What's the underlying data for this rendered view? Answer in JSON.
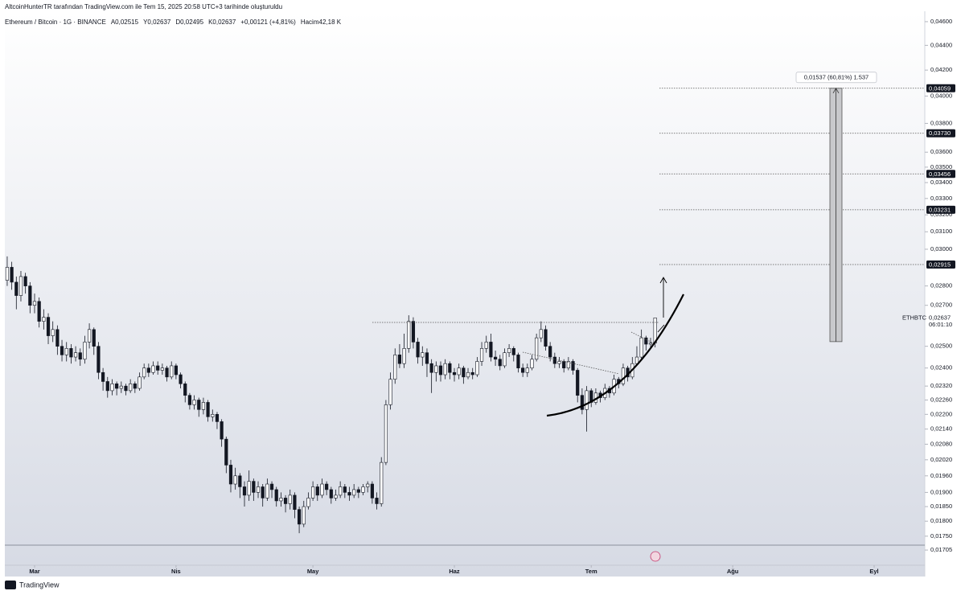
{
  "header": {
    "title": "AltcoinHunterTR tarafından TradingView.com ile Tem 15, 2025 20:58 UTC+3 tarihinde oluşturuldu"
  },
  "chart_data": {
    "type": "candlestick",
    "log_scale": true,
    "symbol": "Ethereum / Bitcoin · 1G · BINANCE",
    "ohlc_legend": [
      "A0,02515",
      "Y0,02637",
      "D0,02495",
      "K0,02637",
      "+0,00121 (+4,81%)",
      "Hacim42,18 K"
    ],
    "up_color": "#ffffff",
    "down_color": "#131722",
    "border_color": "#131722",
    "ylim": [
      0.01652,
      0.04791
    ],
    "yticks": [
      {
        "value": 0.046,
        "label": "0,04600"
      },
      {
        "value": 0.044,
        "label": "0,04400"
      },
      {
        "value": 0.042,
        "label": "0,04200"
      },
      {
        "value": 0.04,
        "label": "0,04000"
      },
      {
        "value": 0.038,
        "label": "0,03800"
      },
      {
        "value": 0.036,
        "label": "0,03600"
      },
      {
        "value": 0.035,
        "label": "0,03500"
      },
      {
        "value": 0.034,
        "label": "0,03400"
      },
      {
        "value": 0.033,
        "label": "0,03300"
      },
      {
        "value": 0.032,
        "label": "0,03200"
      },
      {
        "value": 0.031,
        "label": "0,03100"
      },
      {
        "value": 0.03,
        "label": "0,03000"
      },
      {
        "value": 0.028,
        "label": "0,02800"
      },
      {
        "value": 0.027,
        "label": "0,02700"
      },
      {
        "value": 0.025,
        "label": "0,02500"
      },
      {
        "value": 0.024,
        "label": "0,02400"
      },
      {
        "value": 0.0232,
        "label": "0,02320"
      },
      {
        "value": 0.0226,
        "label": "0,02260"
      },
      {
        "value": 0.022,
        "label": "0,02200"
      },
      {
        "value": 0.0214,
        "label": "0,02140"
      },
      {
        "value": 0.0208,
        "label": "0,02080"
      },
      {
        "value": 0.0202,
        "label": "0,02020"
      },
      {
        "value": 0.0196,
        "label": "0,01960"
      },
      {
        "value": 0.019,
        "label": "0,01900"
      },
      {
        "value": 0.0185,
        "label": "0,01850"
      },
      {
        "value": 0.018,
        "label": "0,01800"
      },
      {
        "value": 0.0175,
        "label": "0,01750"
      },
      {
        "value": 0.01705,
        "label": "0,01705"
      }
    ],
    "xlim": [
      -6.5,
      195
    ],
    "xticks": [
      {
        "value": 0,
        "label": "Mar"
      },
      {
        "value": 31,
        "label": "Nis"
      },
      {
        "value": 61,
        "label": "May"
      },
      {
        "value": 92,
        "label": "Haz"
      },
      {
        "value": 122,
        "label": "Tem"
      },
      {
        "value": 153,
        "label": "Ağu"
      },
      {
        "value": 184,
        "label": "Eyl"
      }
    ],
    "x": [
      -6,
      -5,
      -4,
      -3,
      -2,
      -1,
      0,
      1,
      2,
      3,
      4,
      5,
      6,
      7,
      8,
      9,
      10,
      11,
      12,
      13,
      14,
      15,
      16,
      17,
      18,
      19,
      20,
      21,
      22,
      23,
      24,
      25,
      26,
      27,
      28,
      29,
      30,
      31,
      32,
      33,
      34,
      35,
      36,
      37,
      38,
      39,
      40,
      41,
      42,
      43,
      44,
      45,
      46,
      47,
      48,
      49,
      50,
      51,
      52,
      53,
      54,
      55,
      56,
      57,
      58,
      59,
      60,
      61,
      62,
      63,
      64,
      65,
      66,
      67,
      68,
      69,
      70,
      71,
      72,
      73,
      74,
      75,
      76,
      77,
      78,
      79,
      80,
      81,
      82,
      83,
      84,
      85,
      86,
      87,
      88,
      89,
      90,
      91,
      92,
      93,
      94,
      95,
      96,
      97,
      98,
      99,
      100,
      101,
      102,
      103,
      104,
      105,
      106,
      107,
      108,
      109,
      110,
      111,
      112,
      113,
      114,
      115,
      116,
      117,
      118,
      119,
      120,
      121,
      122,
      123,
      124,
      125,
      126,
      127,
      128,
      129,
      130,
      131,
      132,
      133,
      134,
      135,
      136
    ],
    "open": [
      0.0283,
      0.029,
      0.0282,
      0.0275,
      0.0285,
      0.028,
      0.027,
      0.0272,
      0.0262,
      0.0264,
      0.0255,
      0.0258,
      0.025,
      0.0246,
      0.0249,
      0.0245,
      0.0247,
      0.0244,
      0.0252,
      0.0258,
      0.025,
      0.0238,
      0.0234,
      0.023,
      0.0233,
      0.0231,
      0.0232,
      0.023,
      0.0233,
      0.0231,
      0.0236,
      0.024,
      0.0238,
      0.0241,
      0.0239,
      0.024,
      0.0236,
      0.0241,
      0.0237,
      0.0233,
      0.0228,
      0.0224,
      0.0226,
      0.0222,
      0.0225,
      0.0219,
      0.022,
      0.0217,
      0.021,
      0.02,
      0.0193,
      0.0196,
      0.0192,
      0.0189,
      0.0194,
      0.019,
      0.0192,
      0.0188,
      0.0193,
      0.0191,
      0.0187,
      0.0188,
      0.0186,
      0.0189,
      0.0184,
      0.0179,
      0.0185,
      0.0188,
      0.0192,
      0.0189,
      0.0193,
      0.0191,
      0.0188,
      0.0189,
      0.0192,
      0.019,
      0.0189,
      0.0191,
      0.019,
      0.0192,
      0.0193,
      0.0188,
      0.0186,
      0.0201,
      0.0224,
      0.0235,
      0.0246,
      0.0242,
      0.0249,
      0.0262,
      0.0252,
      0.0245,
      0.0247,
      0.0242,
      0.0238,
      0.0241,
      0.0237,
      0.0242,
      0.0238,
      0.0237,
      0.024,
      0.0236,
      0.0238,
      0.0237,
      0.0243,
      0.0249,
      0.0252,
      0.0245,
      0.0244,
      0.0241,
      0.0247,
      0.0249,
      0.0246,
      0.024,
      0.0238,
      0.024,
      0.0244,
      0.0254,
      0.0258,
      0.025,
      0.0245,
      0.0242,
      0.0243,
      0.024,
      0.0243,
      0.0239,
      0.0228,
      0.0222,
      0.023,
      0.0225,
      0.0229,
      0.0227,
      0.0231,
      0.0229,
      0.0235,
      0.0233,
      0.024,
      0.0236,
      0.0242,
      0.0245,
      0.0254,
      0.0251,
      0.02515
    ],
    "high": [
      0.0296,
      0.0293,
      0.0285,
      0.0288,
      0.0287,
      0.0282,
      0.0276,
      0.0274,
      0.0268,
      0.0266,
      0.0262,
      0.026,
      0.0253,
      0.0252,
      0.0251,
      0.025,
      0.0249,
      0.0255,
      0.0261,
      0.0259,
      0.0252,
      0.024,
      0.0236,
      0.0235,
      0.0234,
      0.0234,
      0.0233,
      0.0235,
      0.0234,
      0.0238,
      0.0242,
      0.0242,
      0.0243,
      0.0243,
      0.0242,
      0.0241,
      0.0243,
      0.0242,
      0.0238,
      0.0234,
      0.0229,
      0.0228,
      0.0227,
      0.0227,
      0.0226,
      0.0222,
      0.0221,
      0.0218,
      0.0211,
      0.0202,
      0.0199,
      0.0197,
      0.0194,
      0.0198,
      0.0195,
      0.0194,
      0.0193,
      0.0195,
      0.0194,
      0.0192,
      0.019,
      0.0189,
      0.0191,
      0.019,
      0.0185,
      0.0187,
      0.019,
      0.0194,
      0.0193,
      0.0195,
      0.0194,
      0.0192,
      0.0191,
      0.0194,
      0.0193,
      0.0192,
      0.0193,
      0.0192,
      0.0193,
      0.0194,
      0.0194,
      0.019,
      0.0203,
      0.0226,
      0.0238,
      0.0249,
      0.0251,
      0.0256,
      0.0265,
      0.0264,
      0.0254,
      0.025,
      0.0249,
      0.0244,
      0.0243,
      0.0243,
      0.0244,
      0.0243,
      0.024,
      0.0242,
      0.0241,
      0.024,
      0.024,
      0.0245,
      0.0252,
      0.0255,
      0.0256,
      0.0248,
      0.0246,
      0.0249,
      0.0251,
      0.025,
      0.0247,
      0.0242,
      0.0242,
      0.0246,
      0.0256,
      0.0262,
      0.026,
      0.0252,
      0.0247,
      0.0245,
      0.0244,
      0.0245,
      0.0244,
      0.024,
      0.0231,
      0.0232,
      0.0231,
      0.0231,
      0.023,
      0.0233,
      0.0232,
      0.0237,
      0.0236,
      0.0242,
      0.0241,
      0.0245,
      0.025,
      0.0258,
      0.0255,
      0.0254,
      0.02637
    ],
    "low": [
      0.028,
      0.0278,
      0.0268,
      0.0272,
      0.0276,
      0.0266,
      0.0266,
      0.0259,
      0.0258,
      0.0251,
      0.0252,
      0.0246,
      0.0243,
      0.0243,
      0.0242,
      0.0243,
      0.0241,
      0.0242,
      0.0249,
      0.0246,
      0.0235,
      0.023,
      0.0227,
      0.0228,
      0.0228,
      0.0229,
      0.0228,
      0.0229,
      0.0229,
      0.023,
      0.0235,
      0.0236,
      0.0237,
      0.0237,
      0.0237,
      0.0234,
      0.0235,
      0.0235,
      0.0231,
      0.0225,
      0.0222,
      0.0222,
      0.0219,
      0.022,
      0.0217,
      0.0217,
      0.0214,
      0.0207,
      0.0197,
      0.019,
      0.0191,
      0.0188,
      0.0185,
      0.0187,
      0.0187,
      0.0188,
      0.0185,
      0.0187,
      0.0188,
      0.0185,
      0.0185,
      0.0183,
      0.0184,
      0.0181,
      0.0176,
      0.0178,
      0.0184,
      0.0187,
      0.0187,
      0.0188,
      0.0189,
      0.0186,
      0.0187,
      0.0188,
      0.0188,
      0.0187,
      0.0188,
      0.0188,
      0.0189,
      0.019,
      0.0186,
      0.0184,
      0.0185,
      0.02,
      0.0222,
      0.0233,
      0.024,
      0.024,
      0.0247,
      0.0249,
      0.0242,
      0.0241,
      0.0236,
      0.0229,
      0.0234,
      0.0234,
      0.0235,
      0.0235,
      0.0234,
      0.0235,
      0.0233,
      0.0235,
      0.0235,
      0.0236,
      0.0241,
      0.0247,
      0.0243,
      0.0241,
      0.0239,
      0.024,
      0.0245,
      0.0243,
      0.0238,
      0.0236,
      0.0236,
      0.0239,
      0.0243,
      0.0252,
      0.0248,
      0.0243,
      0.024,
      0.024,
      0.0238,
      0.0239,
      0.0237,
      0.0225,
      0.022,
      0.0213,
      0.0223,
      0.0224,
      0.0225,
      0.0226,
      0.0227,
      0.0228,
      0.0231,
      0.0232,
      0.0234,
      0.0235,
      0.0241,
      0.0244,
      0.0248,
      0.0249,
      0.02495
    ],
    "close": [
      0.029,
      0.0282,
      0.0275,
      0.0285,
      0.028,
      0.027,
      0.0272,
      0.0262,
      0.0264,
      0.0255,
      0.0258,
      0.025,
      0.0246,
      0.0249,
      0.0245,
      0.0247,
      0.0244,
      0.0252,
      0.0258,
      0.025,
      0.0238,
      0.0234,
      0.023,
      0.0233,
      0.0231,
      0.0232,
      0.023,
      0.0233,
      0.0231,
      0.0236,
      0.024,
      0.0238,
      0.0241,
      0.0239,
      0.024,
      0.0236,
      0.0241,
      0.0237,
      0.0233,
      0.0228,
      0.0224,
      0.0226,
      0.0222,
      0.0225,
      0.0219,
      0.022,
      0.0217,
      0.021,
      0.02,
      0.0193,
      0.0196,
      0.0192,
      0.0189,
      0.0194,
      0.019,
      0.0192,
      0.0188,
      0.0193,
      0.0191,
      0.0187,
      0.0188,
      0.0186,
      0.0189,
      0.0184,
      0.0179,
      0.0185,
      0.0188,
      0.0192,
      0.0189,
      0.0193,
      0.0191,
      0.0188,
      0.0189,
      0.0192,
      0.019,
      0.0189,
      0.0191,
      0.019,
      0.0192,
      0.0193,
      0.0188,
      0.0186,
      0.0201,
      0.0224,
      0.0235,
      0.0246,
      0.0242,
      0.0249,
      0.0262,
      0.0252,
      0.0245,
      0.0247,
      0.0242,
      0.0238,
      0.0241,
      0.0237,
      0.0242,
      0.0238,
      0.0237,
      0.024,
      0.0236,
      0.0238,
      0.0237,
      0.0243,
      0.0249,
      0.0252,
      0.0245,
      0.0244,
      0.0241,
      0.0247,
      0.0249,
      0.0246,
      0.024,
      0.0238,
      0.024,
      0.0244,
      0.0254,
      0.0258,
      0.025,
      0.0245,
      0.0242,
      0.0243,
      0.024,
      0.0243,
      0.0239,
      0.0228,
      0.0222,
      0.023,
      0.0225,
      0.0229,
      0.0227,
      0.0231,
      0.0229,
      0.0235,
      0.0233,
      0.024,
      0.0236,
      0.0242,
      0.0245,
      0.0254,
      0.0251,
      0.02515,
      0.02637
    ],
    "levels": [
      {
        "value": 0.04059,
        "label": "0,04059"
      },
      {
        "value": 0.0373,
        "label": "0,03730"
      },
      {
        "value": 0.03456,
        "label": "0,03456"
      },
      {
        "value": 0.03231,
        "label": "0,03231"
      },
      {
        "value": 0.02915,
        "label": "0,02915"
      }
    ],
    "measure": {
      "label": "0,01537 (60,81%) 1.537",
      "from": 0.02522,
      "to": 0.04059
    },
    "last_price": {
      "symbol": "ETHBTC",
      "label": "0,02637",
      "countdown": "06:01:10"
    }
  },
  "footer": {
    "brand": "TradingView"
  }
}
